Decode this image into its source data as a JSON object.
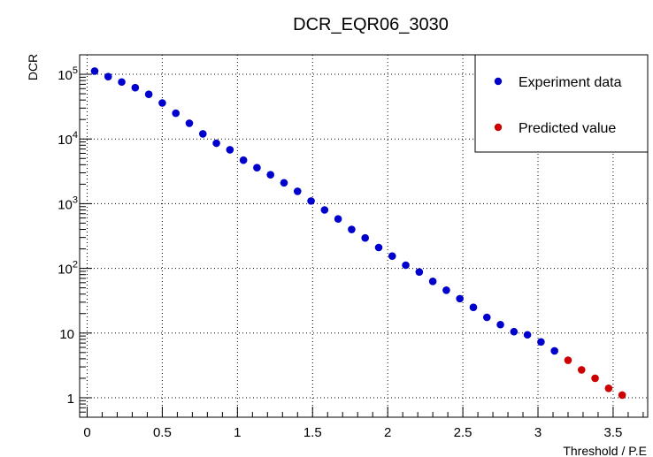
{
  "chart_data": {
    "type": "scatter",
    "title": "DCR_EQR06_3030",
    "xlabel": "Threshold / P.E",
    "ylabel": "DCR",
    "xlim": [
      -0.05,
      3.73
    ],
    "ylim": [
      0.5,
      200000
    ],
    "y_scale": "log",
    "grid": true,
    "legend_position": "top-right",
    "x_ticks": [
      {
        "value": 0,
        "label": "0"
      },
      {
        "value": 0.5,
        "label": "0.5"
      },
      {
        "value": 1,
        "label": "1"
      },
      {
        "value": 1.5,
        "label": "1.5"
      },
      {
        "value": 2,
        "label": "2"
      },
      {
        "value": 2.5,
        "label": "2.5"
      },
      {
        "value": 3,
        "label": "3"
      },
      {
        "value": 3.5,
        "label": "3.5"
      }
    ],
    "y_ticks": [
      {
        "value": 1,
        "base": "1",
        "exp": ""
      },
      {
        "value": 10,
        "base": "10",
        "exp": ""
      },
      {
        "value": 100,
        "base": "10",
        "exp": "2"
      },
      {
        "value": 1000,
        "base": "10",
        "exp": "3"
      },
      {
        "value": 10000,
        "base": "10",
        "exp": "4"
      },
      {
        "value": 100000,
        "base": "10",
        "exp": "5"
      }
    ],
    "series": [
      {
        "name": "Experiment data",
        "color": "#0000cc",
        "x": [
          0.05,
          0.14,
          0.23,
          0.32,
          0.41,
          0.5,
          0.59,
          0.68,
          0.77,
          0.86,
          0.95,
          1.04,
          1.13,
          1.22,
          1.31,
          1.4,
          1.49,
          1.58,
          1.67,
          1.76,
          1.85,
          1.94,
          2.03,
          2.12,
          2.21,
          2.3,
          2.39,
          2.48,
          2.57,
          2.66,
          2.75,
          2.84,
          2.93,
          3.02,
          3.11
        ],
        "y": [
          112000,
          92000,
          76000,
          62000,
          49000,
          36000,
          25000,
          17500,
          12000,
          8600,
          6800,
          4700,
          3600,
          2800,
          2100,
          1550,
          1100,
          800,
          580,
          400,
          295,
          210,
          155,
          112,
          88,
          63,
          46,
          34,
          25,
          17.5,
          13.5,
          10.5,
          9.4,
          7.3,
          5.3
        ]
      },
      {
        "name": "Predicted value",
        "color": "#cc0000",
        "x": [
          3.2,
          3.29,
          3.38,
          3.47,
          3.56
        ],
        "y": [
          3.8,
          2.7,
          2.0,
          1.4,
          1.1
        ]
      }
    ]
  }
}
